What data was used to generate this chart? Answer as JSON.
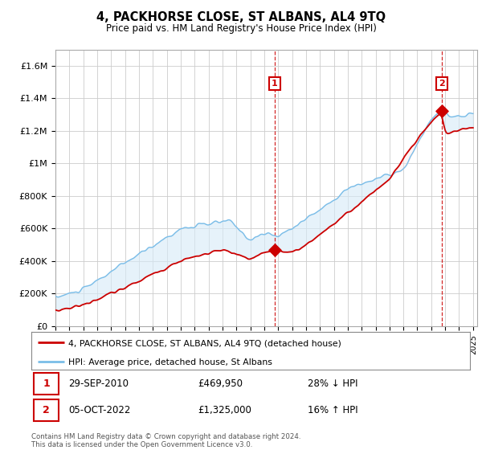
{
  "title": "4, PACKHORSE CLOSE, ST ALBANS, AL4 9TQ",
  "subtitle": "Price paid vs. HM Land Registry's House Price Index (HPI)",
  "y_ticks": [
    0,
    200000,
    400000,
    600000,
    800000,
    1000000,
    1200000,
    1400000,
    1600000
  ],
  "y_tick_labels": [
    "£0",
    "£200K",
    "£400K",
    "£600K",
    "£800K",
    "£1M",
    "£1.2M",
    "£1.4M",
    "£1.6M"
  ],
  "ylim": [
    0,
    1700000
  ],
  "x_start_year": 1995,
  "x_end_year": 2025,
  "hpi_color": "#7abde8",
  "hpi_fill_color": "#d6eaf8",
  "price_color": "#cc0000",
  "marker1_date": 2010.75,
  "marker1_price": 469950,
  "marker1_label": "1",
  "marker1_date_str": "29-SEP-2010",
  "marker1_price_str": "£469,950",
  "marker1_hpi_str": "28% ↓ HPI",
  "marker2_date": 2022.75,
  "marker2_price": 1325000,
  "marker2_label": "2",
  "marker2_date_str": "05-OCT-2022",
  "marker2_price_str": "£1,325,000",
  "marker2_hpi_str": "16% ↑ HPI",
  "legend_label_price": "4, PACKHORSE CLOSE, ST ALBANS, AL4 9TQ (detached house)",
  "legend_label_hpi": "HPI: Average price, detached house, St Albans",
  "footer_line1": "Contains HM Land Registry data © Crown copyright and database right 2024.",
  "footer_line2": "This data is licensed under the Open Government Licence v3.0.",
  "grid_color": "#cccccc",
  "background_color": "#ffffff"
}
